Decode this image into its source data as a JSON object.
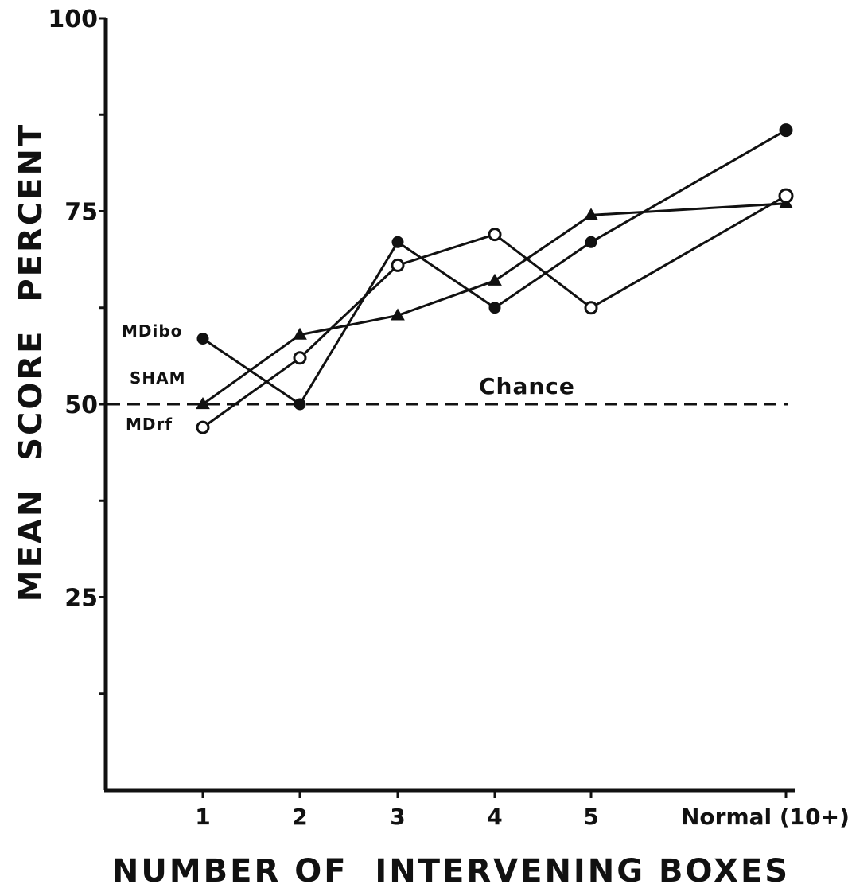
{
  "chart_data": {
    "type": "line",
    "title": "",
    "xlabel": "NUMBER OF  INTERVENING BOXES",
    "ylabel": "MEAN  SCORE  PERCENT",
    "categories": [
      "1",
      "2",
      "3",
      "4",
      "5",
      "Normal (10+)"
    ],
    "ylim": [
      0,
      100
    ],
    "y_ticks": [
      100,
      87.5,
      75,
      62.5,
      50,
      37.5,
      25,
      12.5
    ],
    "y_tick_labels": [
      "100",
      "",
      "75",
      "",
      "50",
      "",
      "25",
      ""
    ],
    "grid": false,
    "series": [
      {
        "name": "MDibo",
        "marker": "filled-circle",
        "values": [
          58.5,
          50,
          71,
          62.5,
          71,
          85.5
        ]
      },
      {
        "name": "SHAM",
        "marker": "filled-triangle",
        "values": [
          50,
          59,
          61.5,
          66,
          74.5,
          76
        ]
      },
      {
        "name": "MDrf",
        "marker": "open-circle",
        "values": [
          47,
          56,
          68,
          72,
          62.5,
          77
        ]
      }
    ],
    "reference_line": {
      "label": "Chance",
      "value": 50,
      "style": "dashed"
    },
    "colors": {
      "line": "#111111",
      "background": "#ffffff"
    }
  }
}
